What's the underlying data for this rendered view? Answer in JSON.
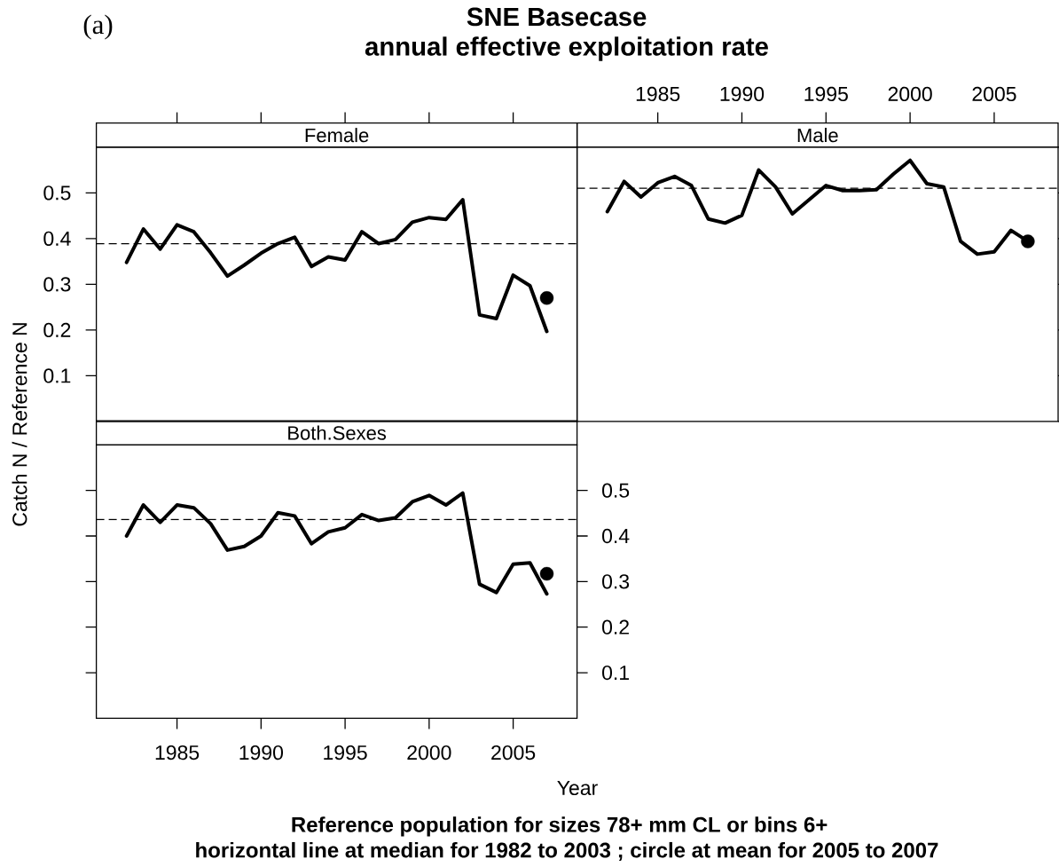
{
  "chart_data": [
    {
      "type": "line",
      "title": "Female",
      "ylabel": "Catch N / Reference N",
      "annotations": [
        "(a)",
        "SNE Basecase",
        "annual effective exploitation rate"
      ],
      "x": [
        1982,
        1983,
        1984,
        1985,
        1986,
        1987,
        1988,
        1989,
        1990,
        1991,
        1992,
        1993,
        1994,
        1995,
        1996,
        1997,
        1998,
        1999,
        2000,
        2001,
        2002,
        2003,
        2004,
        2005,
        2006,
        2007
      ],
      "series": [
        {
          "color": "#000000",
          "values": [
            0.348,
            0.421,
            0.377,
            0.43,
            0.415,
            0.369,
            0.318,
            0.342,
            0.368,
            0.389,
            0.403,
            0.339,
            0.36,
            0.353,
            0.415,
            0.389,
            0.398,
            0.436,
            0.446,
            0.442,
            0.485,
            0.233,
            0.225,
            0.32,
            0.297,
            0.197
          ]
        },
        {
          "type": "scatter",
          "marker": "circle",
          "color": "#000000",
          "values": [
            null,
            null,
            null,
            null,
            null,
            null,
            null,
            null,
            null,
            null,
            null,
            null,
            null,
            null,
            null,
            null,
            null,
            null,
            null,
            null,
            null,
            null,
            null,
            null,
            null,
            0.27
          ]
        }
      ],
      "ref_lines": [
        {
          "axis": "y",
          "value": 0.389,
          "color": "#000000",
          "line_style": "dashed"
        }
      ],
      "xlim": [
        1980.2,
        2008.8
      ],
      "ylim": [
        0,
        0.6
      ],
      "xticks": [
        1985,
        1990,
        1995,
        2000,
        2005
      ],
      "yticks": [
        0.1,
        0.2,
        0.3,
        0.4,
        0.5
      ],
      "tick_labels": "y"
    },
    {
      "type": "line",
      "title": "Male",
      "x": [
        1982,
        1983,
        1984,
        1985,
        1986,
        1987,
        1988,
        1989,
        1990,
        1991,
        1992,
        1993,
        1994,
        1995,
        1996,
        1997,
        1998,
        1999,
        2000,
        2001,
        2002,
        2003,
        2004,
        2005,
        2006,
        2007
      ],
      "series": [
        {
          "color": "#000000",
          "values": [
            0.459,
            0.525,
            0.491,
            0.522,
            0.536,
            0.516,
            0.443,
            0.434,
            0.451,
            0.55,
            0.513,
            0.454,
            0.485,
            0.516,
            0.505,
            0.505,
            0.507,
            0.541,
            0.571,
            0.52,
            0.513,
            0.394,
            0.366,
            0.371,
            0.418,
            0.394
          ]
        },
        {
          "type": "scatter",
          "marker": "circle",
          "color": "#000000",
          "values": [
            null,
            null,
            null,
            null,
            null,
            null,
            null,
            null,
            null,
            null,
            null,
            null,
            null,
            null,
            null,
            null,
            null,
            null,
            null,
            null,
            null,
            null,
            null,
            null,
            null,
            0.394
          ]
        }
      ],
      "ref_lines": [
        {
          "axis": "y",
          "value": 0.51,
          "color": "#000000",
          "line_style": "dashed"
        }
      ],
      "xlim": [
        1980.2,
        2008.8
      ],
      "ylim": [
        0,
        0.6
      ],
      "xticks": [
        1985,
        1990,
        1995,
        2000,
        2005
      ],
      "tick_labels": "x"
    },
    {
      "type": "line",
      "title": "Both.Sexes",
      "xlabel": "Year",
      "annotations": [
        "Reference population for sizes 78+ mm CL or bins 6+",
        "horizontal line at median for 1982 to 2003 ; circle at mean for 2005 to 2007"
      ],
      "x": [
        1982,
        1983,
        1984,
        1985,
        1986,
        1987,
        1988,
        1989,
        1990,
        1991,
        1992,
        1993,
        1994,
        1995,
        1996,
        1997,
        1998,
        1999,
        2000,
        2001,
        2002,
        2003,
        2004,
        2005,
        2006,
        2007
      ],
      "series": [
        {
          "color": "#000000",
          "values": [
            0.4,
            0.468,
            0.43,
            0.468,
            0.462,
            0.427,
            0.369,
            0.377,
            0.4,
            0.451,
            0.444,
            0.383,
            0.409,
            0.418,
            0.447,
            0.434,
            0.44,
            0.475,
            0.489,
            0.468,
            0.494,
            0.294,
            0.276,
            0.338,
            0.341,
            0.273
          ]
        },
        {
          "type": "scatter",
          "marker": "circle",
          "color": "#000000",
          "values": [
            null,
            null,
            null,
            null,
            null,
            null,
            null,
            null,
            null,
            null,
            null,
            null,
            null,
            null,
            null,
            null,
            null,
            null,
            null,
            null,
            null,
            null,
            null,
            null,
            null,
            0.317
          ]
        }
      ],
      "ref_lines": [
        {
          "axis": "y",
          "value": 0.436,
          "color": "#000000",
          "line_style": "dashed"
        }
      ],
      "xlim": [
        1980.2,
        2008.8
      ],
      "ylim": [
        0,
        0.6
      ],
      "xticks": [
        1985,
        1990,
        1995,
        2000,
        2005
      ],
      "yticks": [
        0.1,
        0.2,
        0.3,
        0.4,
        0.5
      ]
    }
  ]
}
